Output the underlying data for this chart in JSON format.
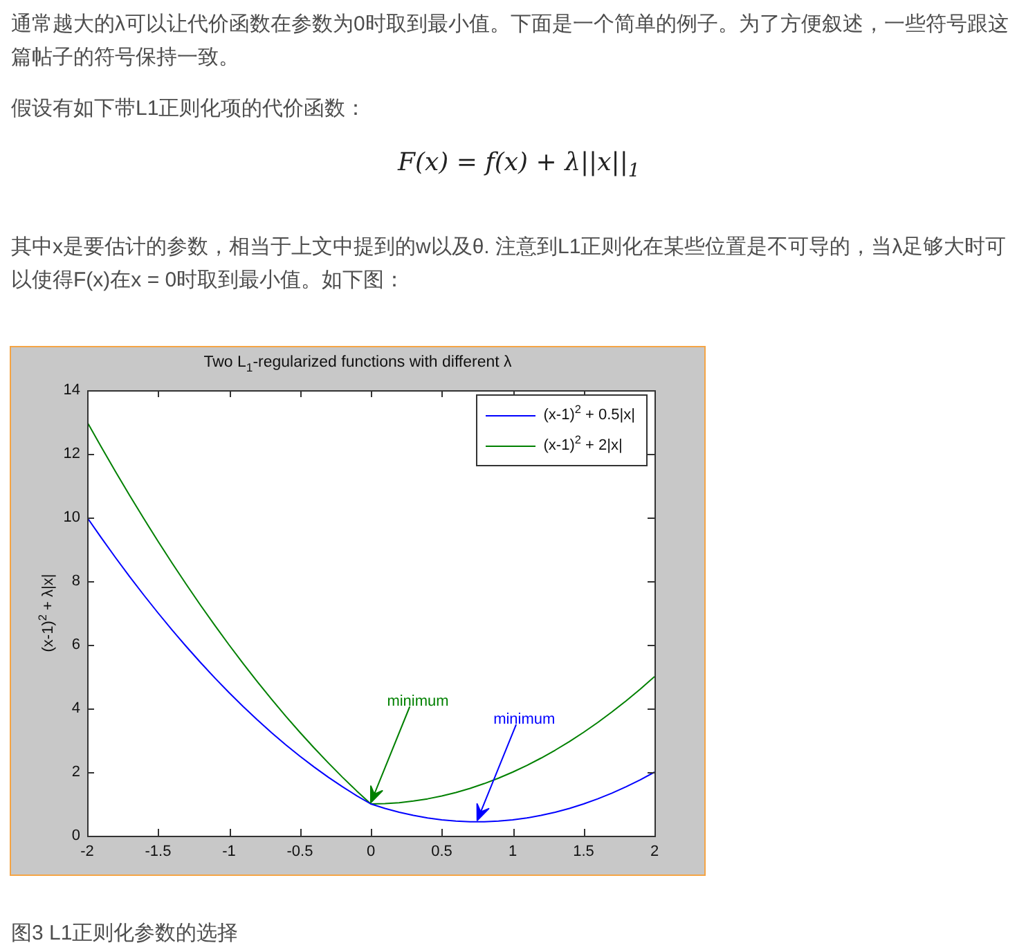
{
  "chart_data": {
    "type": "line",
    "title": "Two L$_{1}$-regularized functions with different λ",
    "ylabel": "(x-1)$^{2}$ + λ|x|",
    "x": [
      -2,
      -1.9,
      -1.8,
      -1.7,
      -1.6,
      -1.5,
      -1.4,
      -1.3,
      -1.2,
      -1.1,
      -1,
      -0.9,
      -0.8,
      -0.7,
      -0.6,
      -0.5,
      -0.4,
      -0.3,
      -0.2,
      -0.1,
      0,
      0.1,
      0.2,
      0.3,
      0.4,
      0.5,
      0.6,
      0.7,
      0.8,
      0.9,
      1,
      1.1,
      1.2,
      1.3,
      1.4,
      1.5,
      1.6,
      1.7,
      1.8,
      1.9,
      2
    ],
    "series": [
      {
        "name": "(x-1)$^{2}$ + 0.5|x|",
        "color": "#0000ff",
        "values": [
          10,
          9.36,
          8.74,
          8.14,
          7.56,
          7,
          6.46,
          5.94,
          5.44,
          4.96,
          4.5,
          4.06,
          3.64,
          3.24,
          2.86,
          2.5,
          2.16,
          1.84,
          1.54,
          1.26,
          1,
          0.86,
          0.74,
          0.64,
          0.56,
          0.5,
          0.46,
          0.44,
          0.44,
          0.46,
          0.5,
          0.56,
          0.64,
          0.74,
          0.86,
          1,
          1.16,
          1.34,
          1.54,
          1.76,
          2
        ]
      },
      {
        "name": "(x-1)$^{2}$ + 2|x|",
        "color": "#008000",
        "values": [
          13,
          12.21,
          11.44,
          10.69,
          9.96,
          9.25,
          8.56,
          7.89,
          7.24,
          6.61,
          6,
          5.41,
          4.84,
          4.29,
          3.76,
          3.25,
          2.76,
          2.29,
          1.84,
          1.41,
          1,
          1.01,
          1.04,
          1.09,
          1.16,
          1.25,
          1.36,
          1.49,
          1.64,
          1.81,
          2,
          2.21,
          2.44,
          2.69,
          2.96,
          3.25,
          3.56,
          3.89,
          4.24,
          4.61,
          5
        ]
      }
    ],
    "xlim": [
      -2,
      2
    ],
    "xticks": [
      -2,
      -1.5,
      -1,
      -0.5,
      0,
      0.5,
      1,
      1.5,
      2
    ],
    "ylim": [
      0,
      14
    ],
    "yticks": [
      0,
      2,
      4,
      6,
      8,
      10,
      12,
      14
    ],
    "legend": "top right",
    "annotations": [
      "通常越大的λ可以让代价函数在参数为0时取到最小值。下面是一个简单的例子。为了方便叙述，一些符号跟这篇帖子的符号保持一致。",
      "假设有如下带L1正则化项的代价函数：",
      "F(x) = f(x) + λ||x||$_{1}$",
      "其中x是要估计的参数，相当于上文中提到的w以及θ. 注意到L1正则化在某些位置是不可导的，当λ足够大时可以使得F(x)在x = 0时取到最小值。如下图：",
      {
        "text": "minimum",
        "x": 0.75,
        "y": 0.44
      },
      {
        "text": "minimum",
        "x": 0,
        "y": 1
      },
      "图3 L1正则化参数的选择"
    ]
  }
}
